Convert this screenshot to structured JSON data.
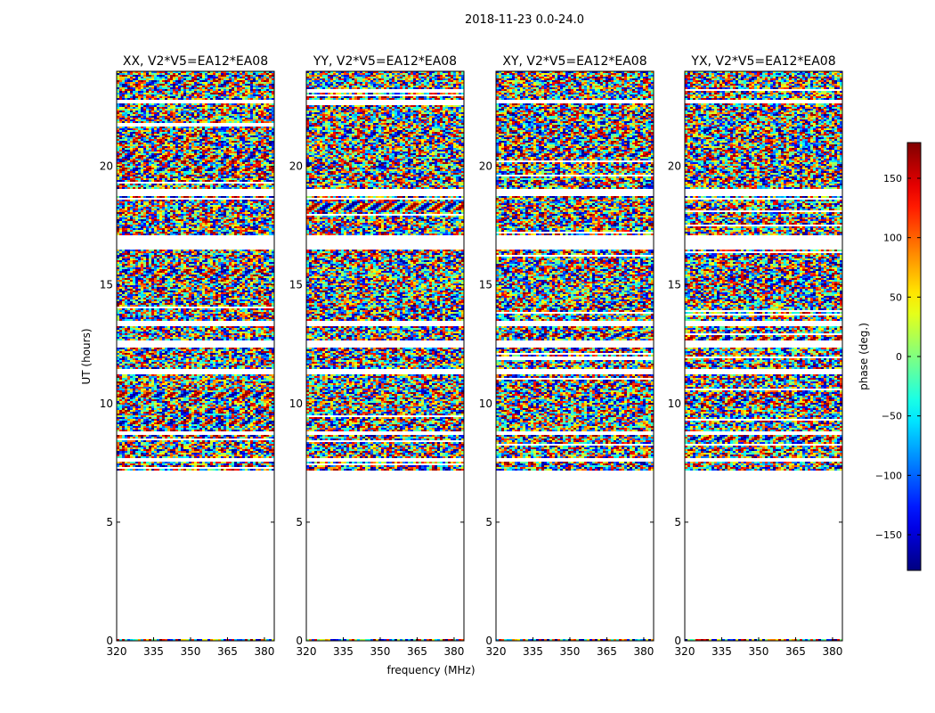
{
  "figure": {
    "suptitle": "2018-11-23 0.0-24.0",
    "colorbar_label": "phase (deg.)"
  },
  "chart_data": {
    "type": "heatmap",
    "xlabel": "frequency (MHz)",
    "ylabel": "UT (hours)",
    "xlim": [
      320,
      384
    ],
    "ylim": [
      0,
      24
    ],
    "xticks": [
      320,
      335,
      350,
      365,
      380
    ],
    "yticks": [
      0,
      5,
      10,
      15,
      20
    ],
    "panels": [
      {
        "title": "XX, V2*V5=EA12*EA08",
        "pol": "XX"
      },
      {
        "title": "YY, V2*V5=EA12*EA08",
        "pol": "YY"
      },
      {
        "title": "XY, V2*V5=EA12*EA08",
        "pol": "XY"
      },
      {
        "title": "YX, V2*V5=EA12*EA08",
        "pol": "YX"
      }
    ],
    "data_coverage_hours": [
      [
        7.2,
        24.0
      ]
    ],
    "gaps_hours": [
      [
        0.05,
        7.2
      ],
      [
        7.6,
        7.75
      ],
      [
        8.75,
        8.9
      ],
      [
        11.3,
        11.5
      ],
      [
        12.4,
        12.7
      ],
      [
        13.3,
        13.5
      ],
      [
        16.5,
        17.1
      ],
      [
        18.8,
        19.05
      ],
      [
        22.7,
        22.8
      ]
    ],
    "colorbar": {
      "label": "phase (deg.)",
      "vmin": -180,
      "vmax": 180,
      "ticks": [
        -150,
        -100,
        -50,
        0,
        50,
        100,
        150
      ],
      "colormap": "jet"
    }
  }
}
